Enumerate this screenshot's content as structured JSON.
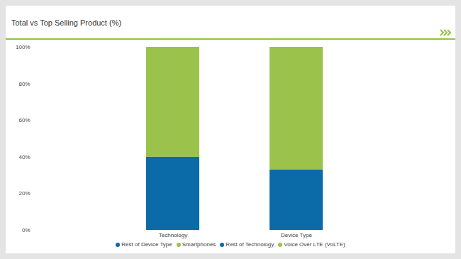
{
  "chart_data": {
    "type": "bar",
    "title": "Total vs Top Selling Product (%)",
    "categories": [
      "Technology",
      "Device Type"
    ],
    "series": [
      {
        "name": "Rest of Device Type",
        "color": "#0b6aa8",
        "values": [
          null,
          33
        ]
      },
      {
        "name": "Smartphones",
        "color": "#9bc24a",
        "values": [
          null,
          67
        ]
      },
      {
        "name": "Rest of Technology",
        "color": "#0b6aa8",
        "values": [
          40,
          null
        ]
      },
      {
        "name": "Voice Over LTE (VoLTE)",
        "color": "#9bc24a",
        "values": [
          60,
          null
        ]
      }
    ],
    "stacked": true,
    "ylim": [
      0,
      100
    ],
    "yticks": [
      {
        "value": 0,
        "label": "0%"
      },
      {
        "value": 20,
        "label": "20%"
      },
      {
        "value": 40,
        "label": "40%"
      },
      {
        "value": 60,
        "label": "60%"
      },
      {
        "value": 80,
        "label": "80%"
      },
      {
        "value": 100,
        "label": "100%"
      }
    ],
    "legend": "bottom"
  }
}
